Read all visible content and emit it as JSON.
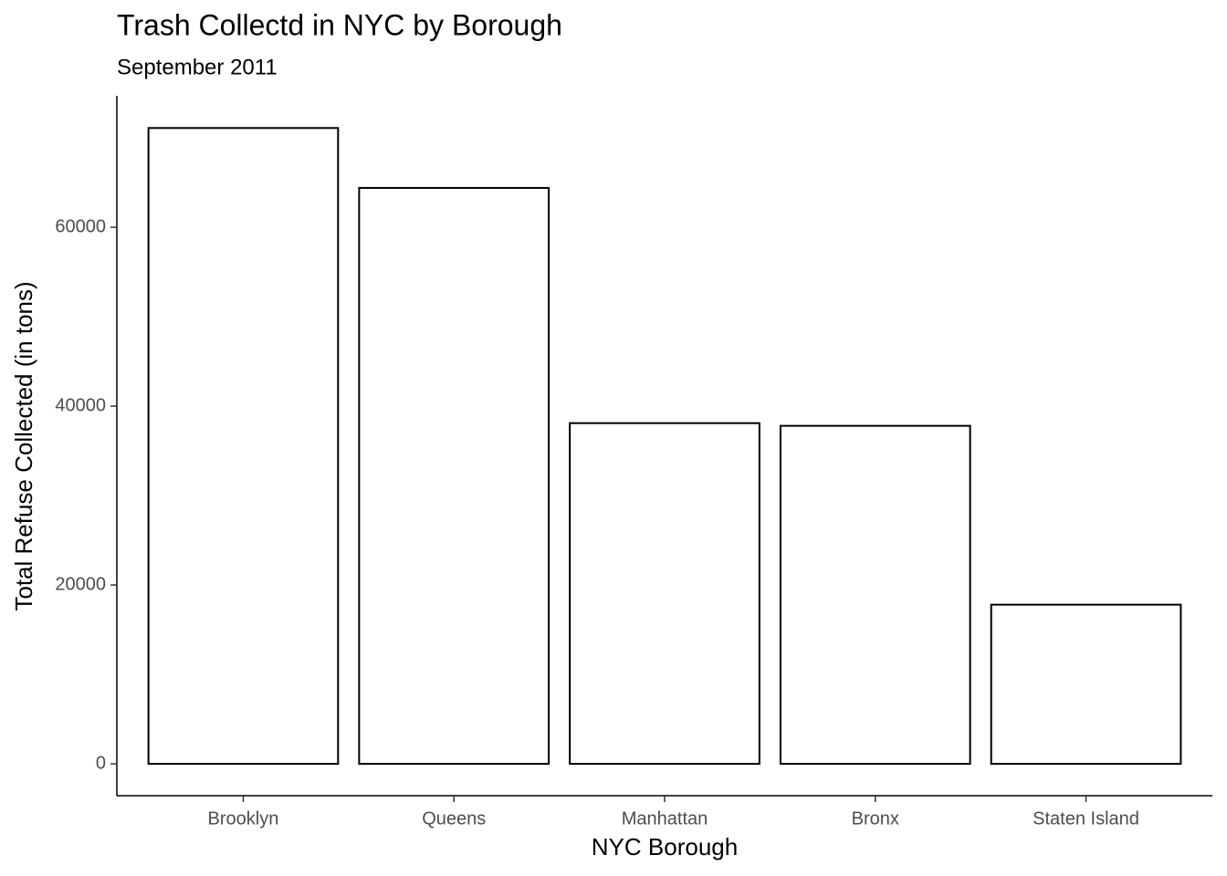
{
  "chart_data": {
    "type": "bar",
    "title": "Trash Collectd in NYC by Borough",
    "subtitle": "September 2011",
    "x_label": "NYC Borough",
    "y_label": "Total Refuse Collected (in tons)",
    "categories": [
      "Brooklyn",
      "Queens",
      "Manhattan",
      "Bronx",
      "Staten Island"
    ],
    "values": [
      71100,
      64400,
      38100,
      37800,
      17800
    ],
    "color": "#ffffff",
    "edgecolor": "#000000",
    "ylim": [
      -3560,
      74700
    ],
    "yticks": [
      0,
      20000,
      40000,
      60000
    ],
    "grid": false
  }
}
